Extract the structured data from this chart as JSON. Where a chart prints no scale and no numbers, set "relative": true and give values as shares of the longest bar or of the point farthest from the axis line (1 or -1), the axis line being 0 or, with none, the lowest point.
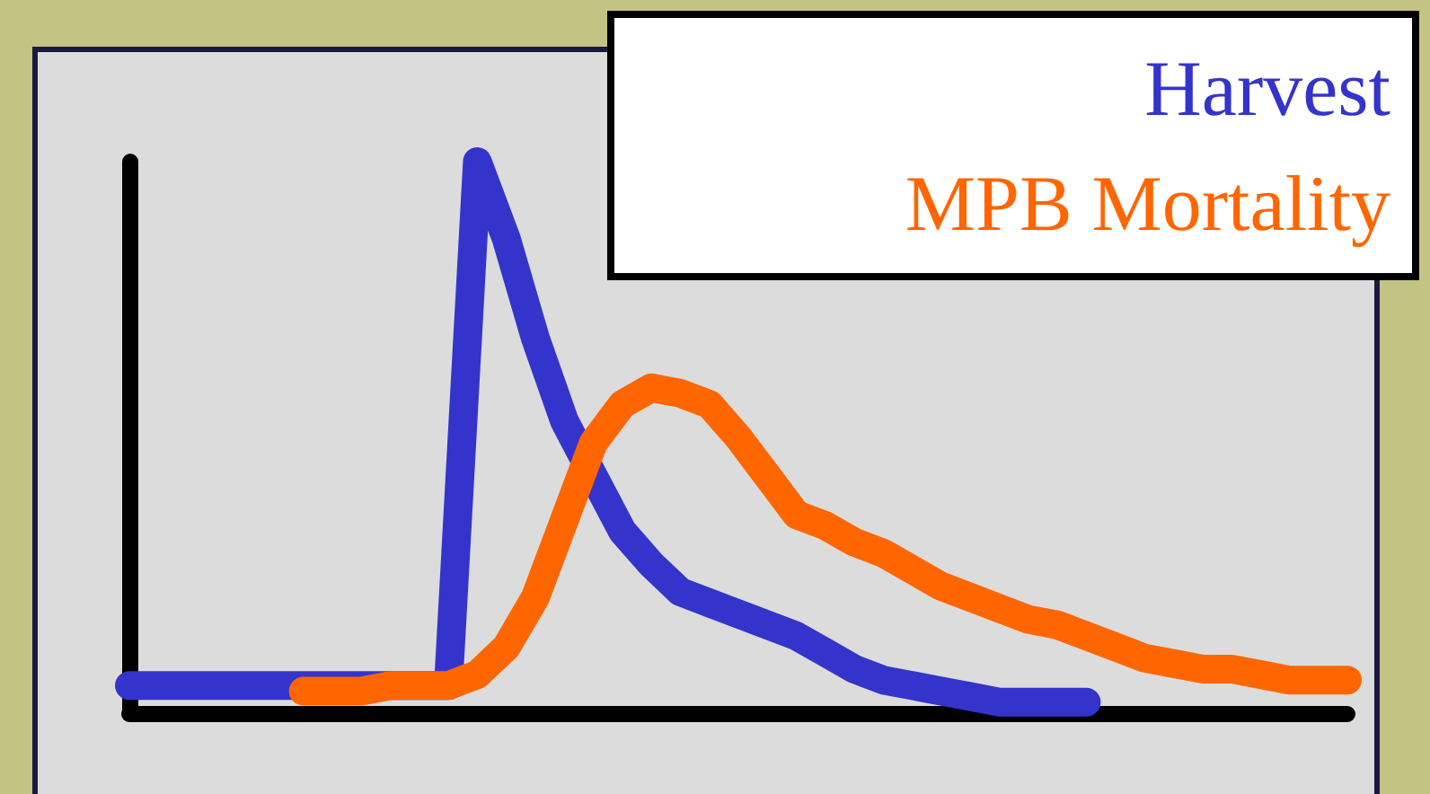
{
  "chart_data": {
    "type": "line",
    "relative": true,
    "categories": [
      null,
      null,
      null,
      null,
      null,
      null,
      null,
      null,
      null,
      null,
      null,
      null,
      null,
      null,
      null,
      null,
      null,
      null,
      null,
      null,
      null,
      null,
      null,
      null,
      null,
      null,
      null,
      null,
      null,
      null,
      null,
      null,
      null,
      null,
      null,
      null,
      null,
      null,
      null,
      null,
      null,
      null,
      null
    ],
    "marker": "none",
    "line_style": "solid",
    "series": [
      {
        "name": "Harvest",
        "color": "#3434cc",
        "values": [
          0.05,
          0.05,
          0.05,
          0.05,
          0.05,
          0.05,
          0.05,
          0.05,
          0.05,
          0.05,
          0.05,
          0.05,
          1,
          0.86,
          0.68,
          0.53,
          0.43,
          0.33,
          0.27,
          0.22,
          0.2,
          0.18,
          0.16,
          0.14,
          0.11,
          0.08,
          0.06,
          0.05,
          0.04,
          0.03,
          0.02,
          0.02,
          0.02,
          0.02,
          null,
          null,
          null,
          null,
          null,
          null,
          null,
          null,
          null
        ]
      },
      {
        "name": "MPB Mortality",
        "color": "#ff6600",
        "values": [
          null,
          null,
          null,
          null,
          null,
          null,
          0.04,
          0.04,
          0.04,
          0.05,
          0.05,
          0.05,
          0.07,
          0.12,
          0.21,
          0.35,
          0.49,
          0.56,
          0.59,
          0.58,
          0.56,
          0.5,
          0.43,
          0.36,
          0.34,
          0.31,
          0.29,
          0.26,
          0.23,
          0.21,
          0.19,
          0.17,
          0.16,
          0.14,
          0.12,
          0.1,
          0.09,
          0.08,
          0.08,
          0.07,
          0.06,
          0.06,
          0.06
        ]
      }
    ]
  }
}
